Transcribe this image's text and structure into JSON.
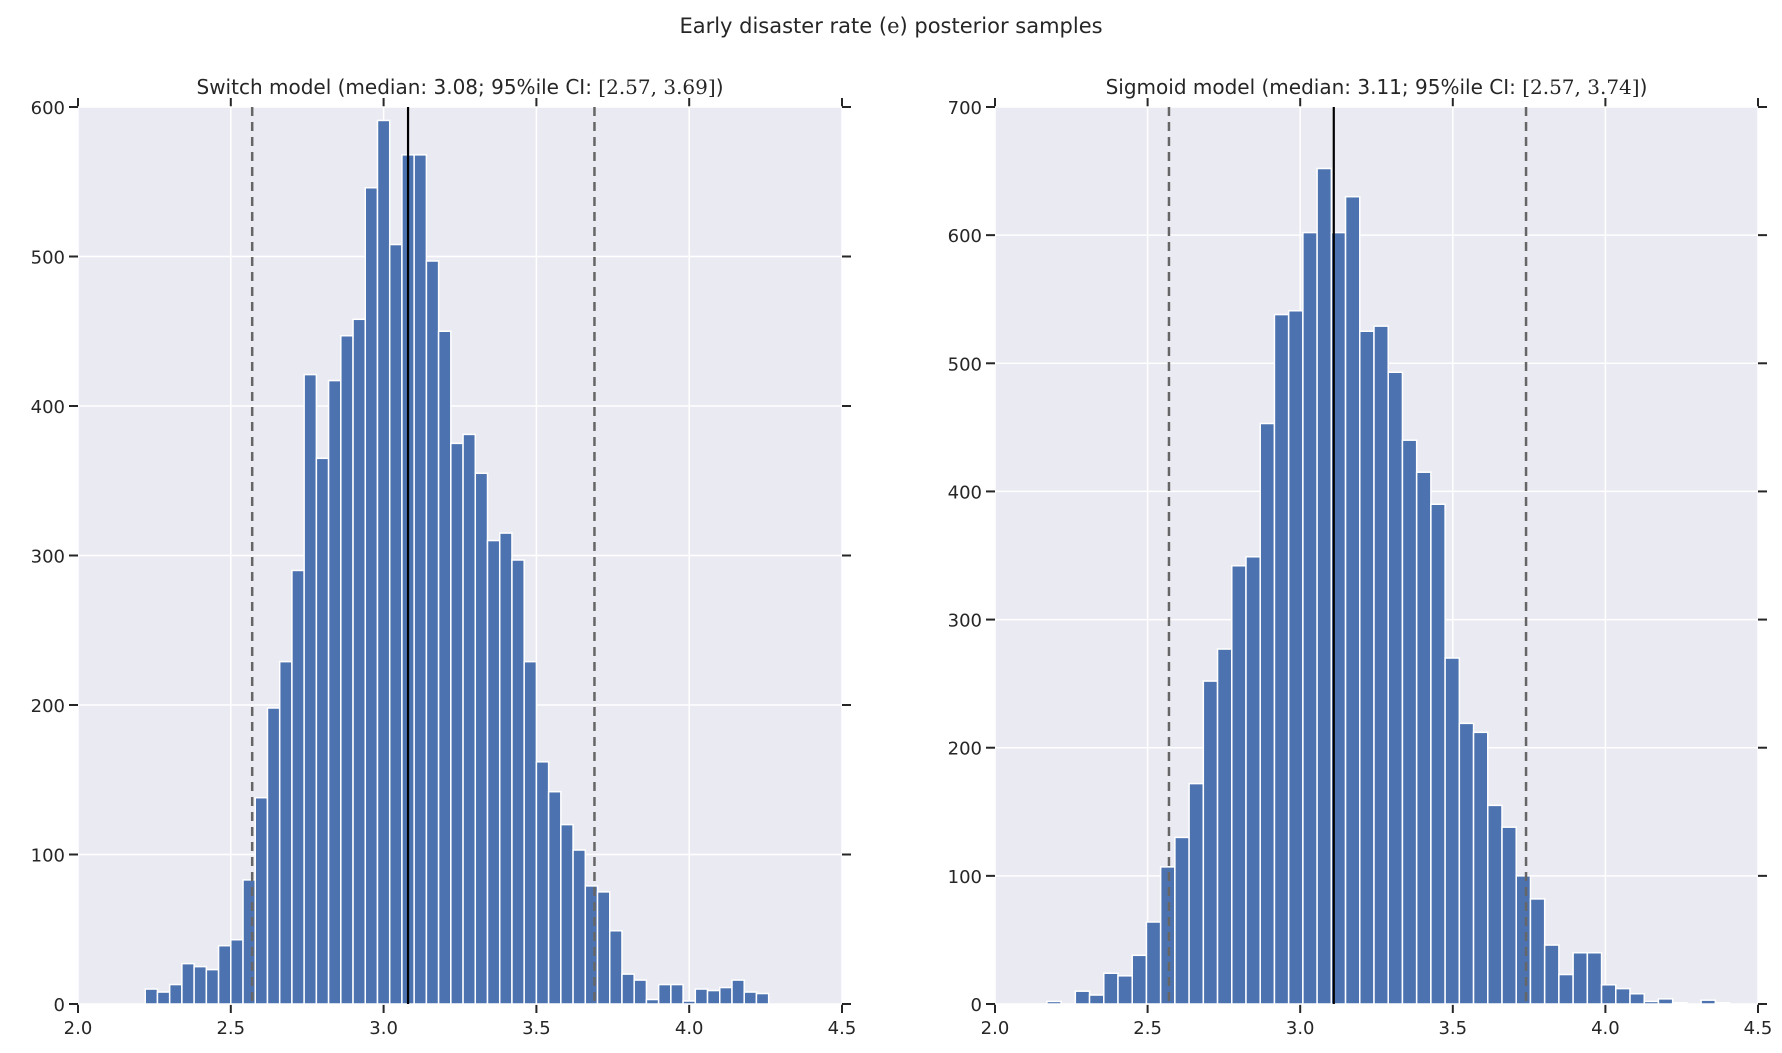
{
  "figure": {
    "suptitle_prefix": "Early disaster rate (",
    "suptitle_math": "e",
    "suptitle_suffix": ") posterior samples"
  },
  "colors": {
    "bar": "#4c72b0",
    "background": "#eaeaf2",
    "grid": "#ffffff",
    "median_line": "#000000",
    "ci_line": "#666666"
  },
  "chart_data": [
    {
      "type": "bar",
      "title_text": "Switch model (median: 3.08; 95%ile CI: ",
      "title_math": "[2.57, 3.69]",
      "title_suffix": ")",
      "median": 3.08,
      "ci": [
        2.57,
        3.69
      ],
      "xlim": [
        2.0,
        4.5
      ],
      "ylim": [
        0,
        600
      ],
      "xticks": [
        "2.0",
        "2.5",
        "3.0",
        "3.5",
        "4.0",
        "4.5"
      ],
      "yticks": [
        "0",
        "100",
        "200",
        "300",
        "400",
        "500",
        "600"
      ],
      "grid": true,
      "bin_start": 2.22,
      "bin_width": 0.04,
      "values": [
        10,
        8,
        13,
        27,
        25,
        23,
        39,
        43,
        83,
        138,
        198,
        229,
        290,
        421,
        365,
        417,
        447,
        458,
        546,
        591,
        508,
        568,
        568,
        497,
        450,
        375,
        381,
        355,
        310,
        315,
        297,
        229,
        162,
        142,
        120,
        103,
        79,
        75,
        49,
        20,
        16,
        3,
        13,
        13,
        2,
        10,
        9,
        11,
        16,
        8,
        7
      ]
    },
    {
      "type": "bar",
      "title_text": "Sigmoid model (median: 3.11; 95%ile CI: ",
      "title_math": "[2.57, 3.74]",
      "title_suffix": ")",
      "median": 3.11,
      "ci": [
        2.57,
        3.74
      ],
      "xlim": [
        2.0,
        4.5
      ],
      "ylim": [
        0,
        700
      ],
      "xticks": [
        "2.0",
        "2.5",
        "3.0",
        "3.5",
        "4.0",
        "4.5"
      ],
      "yticks": [
        "0",
        "100",
        "200",
        "300",
        "400",
        "500",
        "600",
        "700"
      ],
      "grid": true,
      "bin_start": 2.17,
      "bin_width": 0.0466,
      "values": [
        2,
        0,
        10,
        7,
        24,
        22,
        38,
        64,
        107,
        130,
        172,
        252,
        277,
        342,
        349,
        453,
        538,
        541,
        602,
        652,
        602,
        630,
        525,
        529,
        493,
        440,
        415,
        390,
        270,
        219,
        212,
        155,
        138,
        100,
        82,
        46,
        23,
        40,
        40,
        15,
        12,
        8,
        2,
        4,
        1,
        0,
        3,
        1
      ]
    }
  ]
}
